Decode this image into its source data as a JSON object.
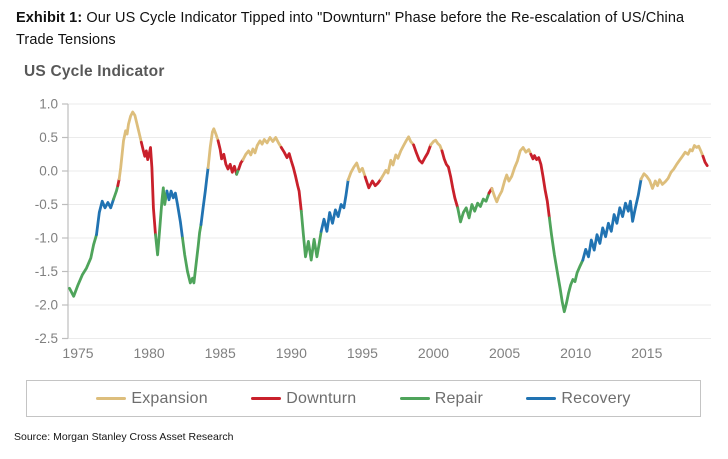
{
  "header": {
    "exhibit_label": "Exhibit 1:",
    "title_rest": " Our US Cycle Indicator Tipped into \"Downturn\" Phase before the Re-escalation of US/China Trade Tensions"
  },
  "chart": {
    "subtitle": "US Cycle Indicator"
  },
  "source": "Source: Morgan Stanley Cross Asset Research",
  "legend": [
    {
      "label": "Expansion",
      "phase": "E",
      "color": "#DDBE7C"
    },
    {
      "label": "Downturn",
      "phase": "D",
      "color": "#C9202B"
    },
    {
      "label": "Repair",
      "phase": "R",
      "color": "#4FA45B"
    },
    {
      "label": "Recovery",
      "phase": "B",
      "color": "#2173B2"
    }
  ],
  "chart_data": {
    "type": "line",
    "title": "US Cycle Indicator",
    "xlabel": "",
    "ylabel": "",
    "xlim": [
      1974.3,
      2019.6
    ],
    "ylim": [
      -2.5,
      1.0
    ],
    "x_ticks": [
      1975,
      1980,
      1985,
      1990,
      1995,
      2000,
      2005,
      2010,
      2015
    ],
    "y_ticks": [
      1.0,
      0.5,
      0.0,
      -0.5,
      -1.0,
      -1.5,
      -2.0,
      -2.5
    ],
    "grid": "horizontal",
    "legend_position": "bottom",
    "phase_names": {
      "E": "Expansion",
      "D": "Downturn",
      "R": "Repair",
      "B": "Recovery"
    },
    "phase_colors": {
      "E": "#DDBE7C",
      "D": "#C9202B",
      "R": "#4FA45B",
      "B": "#2173B2"
    },
    "points": [
      [
        1974.4,
        -1.75,
        "R"
      ],
      [
        1974.7,
        -1.87,
        "R"
      ],
      [
        1975.0,
        -1.7,
        "R"
      ],
      [
        1975.3,
        -1.55,
        "R"
      ],
      [
        1975.6,
        -1.45,
        "R"
      ],
      [
        1975.9,
        -1.3,
        "R"
      ],
      [
        1976.1,
        -1.1,
        "R"
      ],
      [
        1976.3,
        -0.95,
        "B"
      ],
      [
        1976.5,
        -0.62,
        "B"
      ],
      [
        1976.7,
        -0.45,
        "B"
      ],
      [
        1976.9,
        -0.55,
        "B"
      ],
      [
        1977.1,
        -0.47,
        "B"
      ],
      [
        1977.3,
        -0.55,
        "B"
      ],
      [
        1977.5,
        -0.42,
        "R"
      ],
      [
        1977.7,
        -0.3,
        "R"
      ],
      [
        1977.8,
        -0.22,
        "D"
      ],
      [
        1977.9,
        -0.12,
        "E"
      ],
      [
        1978.0,
        0.05,
        "E"
      ],
      [
        1978.1,
        0.25,
        "E"
      ],
      [
        1978.2,
        0.45,
        "E"
      ],
      [
        1978.35,
        0.6,
        "E"
      ],
      [
        1978.45,
        0.55,
        "E"
      ],
      [
        1978.55,
        0.7,
        "E"
      ],
      [
        1978.7,
        0.82,
        "E"
      ],
      [
        1978.85,
        0.88,
        "E"
      ],
      [
        1979.0,
        0.83,
        "E"
      ],
      [
        1979.15,
        0.7,
        "E"
      ],
      [
        1979.3,
        0.57,
        "E"
      ],
      [
        1979.45,
        0.43,
        "D"
      ],
      [
        1979.6,
        0.3,
        "D"
      ],
      [
        1979.7,
        0.22,
        "D"
      ],
      [
        1979.8,
        0.3,
        "D"
      ],
      [
        1979.9,
        0.17,
        "D"
      ],
      [
        1980.0,
        0.25,
        "D"
      ],
      [
        1980.1,
        0.35,
        "D"
      ],
      [
        1980.2,
        0.05,
        "D"
      ],
      [
        1980.3,
        -0.55,
        "D"
      ],
      [
        1980.45,
        -0.95,
        "R"
      ],
      [
        1980.6,
        -1.25,
        "R"
      ],
      [
        1980.75,
        -0.85,
        "R"
      ],
      [
        1980.9,
        -0.45,
        "R"
      ],
      [
        1981.0,
        -0.25,
        "R"
      ],
      [
        1981.1,
        -0.5,
        "R"
      ],
      [
        1981.25,
        -0.3,
        "B"
      ],
      [
        1981.4,
        -0.43,
        "B"
      ],
      [
        1981.55,
        -0.3,
        "B"
      ],
      [
        1981.7,
        -0.4,
        "B"
      ],
      [
        1981.85,
        -0.33,
        "B"
      ],
      [
        1982.0,
        -0.5,
        "B"
      ],
      [
        1982.2,
        -0.76,
        "B"
      ],
      [
        1982.35,
        -1.0,
        "R"
      ],
      [
        1982.5,
        -1.25,
        "R"
      ],
      [
        1982.7,
        -1.5,
        "R"
      ],
      [
        1982.9,
        -1.67,
        "R"
      ],
      [
        1983.05,
        -1.6,
        "R"
      ],
      [
        1983.15,
        -1.67,
        "R"
      ],
      [
        1983.3,
        -1.4,
        "R"
      ],
      [
        1983.45,
        -1.12,
        "R"
      ],
      [
        1983.55,
        -0.92,
        "R"
      ],
      [
        1983.65,
        -0.8,
        "B"
      ],
      [
        1983.8,
        -0.55,
        "B"
      ],
      [
        1983.95,
        -0.3,
        "B"
      ],
      [
        1984.05,
        -0.12,
        "B"
      ],
      [
        1984.15,
        0.05,
        "E"
      ],
      [
        1984.3,
        0.35,
        "E"
      ],
      [
        1984.45,
        0.58,
        "E"
      ],
      [
        1984.55,
        0.63,
        "E"
      ],
      [
        1984.7,
        0.55,
        "E"
      ],
      [
        1984.85,
        0.45,
        "D"
      ],
      [
        1985.0,
        0.32,
        "D"
      ],
      [
        1985.1,
        0.18,
        "D"
      ],
      [
        1985.25,
        0.25,
        "D"
      ],
      [
        1985.4,
        0.1,
        "D"
      ],
      [
        1985.55,
        0.03,
        "D"
      ],
      [
        1985.7,
        0.1,
        "D"
      ],
      [
        1985.85,
        -0.02,
        "D"
      ],
      [
        1986.0,
        0.07,
        "D"
      ],
      [
        1986.15,
        -0.05,
        "R"
      ],
      [
        1986.3,
        0.03,
        "D"
      ],
      [
        1986.45,
        0.12,
        "D"
      ],
      [
        1986.6,
        0.17,
        "E"
      ],
      [
        1986.8,
        0.25,
        "E"
      ],
      [
        1987.0,
        0.3,
        "E"
      ],
      [
        1987.15,
        0.24,
        "E"
      ],
      [
        1987.3,
        0.33,
        "E"
      ],
      [
        1987.45,
        0.27,
        "E"
      ],
      [
        1987.6,
        0.38,
        "E"
      ],
      [
        1987.8,
        0.45,
        "E"
      ],
      [
        1987.95,
        0.4,
        "E"
      ],
      [
        1988.1,
        0.47,
        "E"
      ],
      [
        1988.3,
        0.42,
        "E"
      ],
      [
        1988.5,
        0.5,
        "E"
      ],
      [
        1988.7,
        0.44,
        "E"
      ],
      [
        1988.9,
        0.5,
        "E"
      ],
      [
        1989.1,
        0.42,
        "E"
      ],
      [
        1989.3,
        0.35,
        "D"
      ],
      [
        1989.5,
        0.28,
        "D"
      ],
      [
        1989.7,
        0.2,
        "D"
      ],
      [
        1989.85,
        0.26,
        "D"
      ],
      [
        1990.0,
        0.15,
        "D"
      ],
      [
        1990.15,
        0.05,
        "D"
      ],
      [
        1990.3,
        -0.08,
        "D"
      ],
      [
        1990.45,
        -0.22,
        "D"
      ],
      [
        1990.55,
        -0.3,
        "D"
      ],
      [
        1990.7,
        -0.6,
        "R"
      ],
      [
        1990.85,
        -0.95,
        "R"
      ],
      [
        1991.0,
        -1.28,
        "R"
      ],
      [
        1991.2,
        -1.05,
        "R"
      ],
      [
        1991.4,
        -1.33,
        "R"
      ],
      [
        1991.6,
        -1.02,
        "R"
      ],
      [
        1991.8,
        -1.28,
        "R"
      ],
      [
        1991.95,
        -1.1,
        "R"
      ],
      [
        1992.1,
        -0.9,
        "B"
      ],
      [
        1992.3,
        -0.72,
        "B"
      ],
      [
        1992.5,
        -0.9,
        "B"
      ],
      [
        1992.7,
        -0.62,
        "B"
      ],
      [
        1992.9,
        -0.78,
        "B"
      ],
      [
        1993.1,
        -0.58,
        "B"
      ],
      [
        1993.3,
        -0.68,
        "B"
      ],
      [
        1993.5,
        -0.5,
        "B"
      ],
      [
        1993.7,
        -0.55,
        "B"
      ],
      [
        1993.85,
        -0.36,
        "B"
      ],
      [
        1994.0,
        -0.13,
        "E"
      ],
      [
        1994.2,
        -0.02,
        "E"
      ],
      [
        1994.4,
        0.06,
        "E"
      ],
      [
        1994.6,
        0.12,
        "E"
      ],
      [
        1994.8,
        -0.01,
        "E"
      ],
      [
        1995.0,
        0.04,
        "E"
      ],
      [
        1995.2,
        -0.09,
        "D"
      ],
      [
        1995.45,
        -0.25,
        "D"
      ],
      [
        1995.7,
        -0.15,
        "D"
      ],
      [
        1995.9,
        -0.22,
        "D"
      ],
      [
        1996.1,
        -0.18,
        "D"
      ],
      [
        1996.3,
        -0.12,
        "E"
      ],
      [
        1996.5,
        -0.05,
        "E"
      ],
      [
        1996.65,
        0.01,
        "E"
      ],
      [
        1996.8,
        -0.03,
        "E"
      ],
      [
        1997.0,
        0.16,
        "E"
      ],
      [
        1997.15,
        0.09,
        "E"
      ],
      [
        1997.35,
        0.24,
        "E"
      ],
      [
        1997.5,
        0.19,
        "E"
      ],
      [
        1997.7,
        0.3,
        "E"
      ],
      [
        1997.9,
        0.38,
        "E"
      ],
      [
        1998.1,
        0.46,
        "E"
      ],
      [
        1998.25,
        0.51,
        "E"
      ],
      [
        1998.4,
        0.44,
        "E"
      ],
      [
        1998.6,
        0.39,
        "D"
      ],
      [
        1998.8,
        0.27,
        "D"
      ],
      [
        1999.0,
        0.16,
        "D"
      ],
      [
        1999.2,
        0.12,
        "D"
      ],
      [
        1999.4,
        0.2,
        "D"
      ],
      [
        1999.6,
        0.27,
        "D"
      ],
      [
        1999.8,
        0.39,
        "E"
      ],
      [
        2000.0,
        0.44,
        "E"
      ],
      [
        2000.15,
        0.46,
        "E"
      ],
      [
        2000.3,
        0.41,
        "E"
      ],
      [
        2000.45,
        0.38,
        "E"
      ],
      [
        2000.6,
        0.3,
        "D"
      ],
      [
        2000.75,
        0.18,
        "D"
      ],
      [
        2000.9,
        0.1,
        "D"
      ],
      [
        2001.05,
        0.06,
        "D"
      ],
      [
        2001.2,
        -0.08,
        "D"
      ],
      [
        2001.35,
        -0.25,
        "D"
      ],
      [
        2001.5,
        -0.4,
        "D"
      ],
      [
        2001.7,
        -0.55,
        "R"
      ],
      [
        2001.9,
        -0.76,
        "R"
      ],
      [
        2002.1,
        -0.62,
        "R"
      ],
      [
        2002.3,
        -0.55,
        "R"
      ],
      [
        2002.5,
        -0.7,
        "R"
      ],
      [
        2002.7,
        -0.5,
        "R"
      ],
      [
        2002.9,
        -0.6,
        "R"
      ],
      [
        2003.1,
        -0.48,
        "R"
      ],
      [
        2003.3,
        -0.53,
        "R"
      ],
      [
        2003.5,
        -0.42,
        "R"
      ],
      [
        2003.7,
        -0.45,
        "R"
      ],
      [
        2003.9,
        -0.33,
        "D"
      ],
      [
        2004.1,
        -0.26,
        "E"
      ],
      [
        2004.3,
        -0.38,
        "E"
      ],
      [
        2004.45,
        -0.46,
        "E"
      ],
      [
        2004.6,
        -0.38,
        "E"
      ],
      [
        2004.8,
        -0.3,
        "E"
      ],
      [
        2005.0,
        -0.15,
        "E"
      ],
      [
        2005.15,
        -0.06,
        "E"
      ],
      [
        2005.3,
        -0.15,
        "E"
      ],
      [
        2005.5,
        -0.08,
        "E"
      ],
      [
        2005.7,
        0.05,
        "E"
      ],
      [
        2005.9,
        0.15,
        "E"
      ],
      [
        2006.1,
        0.3,
        "E"
      ],
      [
        2006.3,
        0.35,
        "E"
      ],
      [
        2006.5,
        0.28,
        "E"
      ],
      [
        2006.7,
        0.32,
        "E"
      ],
      [
        2006.85,
        0.25,
        "D"
      ],
      [
        2007.0,
        0.18,
        "D"
      ],
      [
        2007.1,
        0.23,
        "D"
      ],
      [
        2007.25,
        0.17,
        "D"
      ],
      [
        2007.4,
        0.2,
        "D"
      ],
      [
        2007.55,
        0.1,
        "D"
      ],
      [
        2007.7,
        -0.08,
        "D"
      ],
      [
        2007.85,
        -0.28,
        "D"
      ],
      [
        2008.0,
        -0.45,
        "D"
      ],
      [
        2008.15,
        -0.7,
        "R"
      ],
      [
        2008.3,
        -0.95,
        "R"
      ],
      [
        2008.5,
        -1.25,
        "R"
      ],
      [
        2008.7,
        -1.5,
        "R"
      ],
      [
        2008.9,
        -1.75,
        "R"
      ],
      [
        2009.05,
        -1.95,
        "R"
      ],
      [
        2009.2,
        -2.1,
        "R"
      ],
      [
        2009.35,
        -1.97,
        "R"
      ],
      [
        2009.5,
        -1.82,
        "R"
      ],
      [
        2009.65,
        -1.7,
        "R"
      ],
      [
        2009.8,
        -1.62,
        "R"
      ],
      [
        2009.95,
        -1.65,
        "R"
      ],
      [
        2010.1,
        -1.52,
        "R"
      ],
      [
        2010.3,
        -1.42,
        "R"
      ],
      [
        2010.5,
        -1.33,
        "B"
      ],
      [
        2010.7,
        -1.17,
        "B"
      ],
      [
        2010.9,
        -1.28,
        "B"
      ],
      [
        2011.1,
        -1.03,
        "B"
      ],
      [
        2011.3,
        -1.18,
        "B"
      ],
      [
        2011.5,
        -0.95,
        "B"
      ],
      [
        2011.7,
        -1.08,
        "B"
      ],
      [
        2011.9,
        -0.85,
        "B"
      ],
      [
        2012.1,
        -0.98,
        "B"
      ],
      [
        2012.3,
        -0.78,
        "B"
      ],
      [
        2012.5,
        -0.9,
        "B"
      ],
      [
        2012.7,
        -0.65,
        "B"
      ],
      [
        2012.9,
        -0.78,
        "B"
      ],
      [
        2013.1,
        -0.55,
        "B"
      ],
      [
        2013.3,
        -0.68,
        "B"
      ],
      [
        2013.5,
        -0.48,
        "B"
      ],
      [
        2013.7,
        -0.6,
        "B"
      ],
      [
        2013.85,
        -0.45,
        "B"
      ],
      [
        2014.0,
        -0.75,
        "B"
      ],
      [
        2014.2,
        -0.55,
        "B"
      ],
      [
        2014.4,
        -0.36,
        "B"
      ],
      [
        2014.6,
        -0.12,
        "E"
      ],
      [
        2014.8,
        -0.04,
        "E"
      ],
      [
        2015.0,
        -0.08,
        "E"
      ],
      [
        2015.2,
        -0.14,
        "E"
      ],
      [
        2015.4,
        -0.26,
        "E"
      ],
      [
        2015.6,
        -0.15,
        "E"
      ],
      [
        2015.75,
        -0.22,
        "E"
      ],
      [
        2015.9,
        -0.13,
        "E"
      ],
      [
        2016.1,
        -0.2,
        "E"
      ],
      [
        2016.3,
        -0.16,
        "E"
      ],
      [
        2016.5,
        -0.11,
        "E"
      ],
      [
        2016.7,
        -0.02,
        "E"
      ],
      [
        2016.9,
        0.03,
        "E"
      ],
      [
        2017.1,
        0.1,
        "E"
      ],
      [
        2017.3,
        0.16,
        "E"
      ],
      [
        2017.5,
        0.22,
        "E"
      ],
      [
        2017.7,
        0.28,
        "E"
      ],
      [
        2017.9,
        0.25,
        "E"
      ],
      [
        2018.05,
        0.32,
        "E"
      ],
      [
        2018.2,
        0.3,
        "E"
      ],
      [
        2018.35,
        0.38,
        "E"
      ],
      [
        2018.5,
        0.35,
        "E"
      ],
      [
        2018.65,
        0.37,
        "E"
      ],
      [
        2018.8,
        0.3,
        "E"
      ],
      [
        2018.95,
        0.22,
        "D"
      ],
      [
        2019.1,
        0.13,
        "D"
      ],
      [
        2019.25,
        0.08,
        "D"
      ]
    ]
  }
}
